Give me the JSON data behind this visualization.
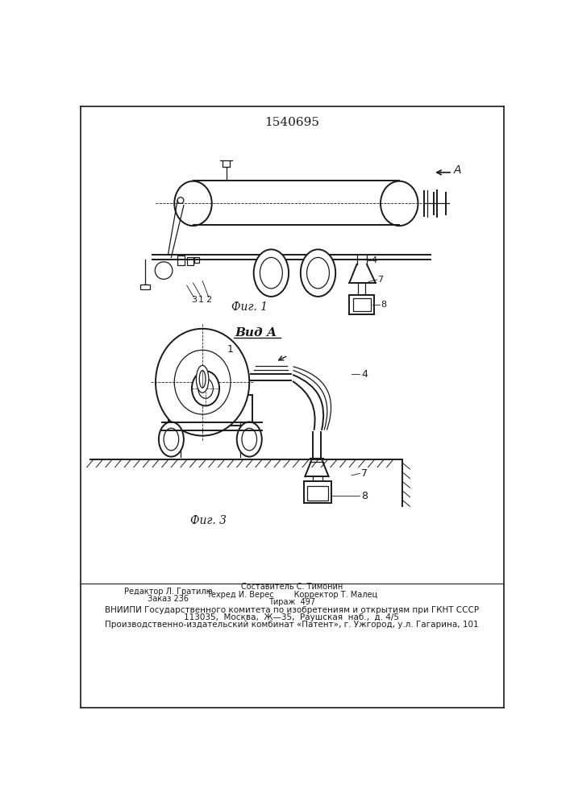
{
  "patent_number": "1540695",
  "fig1_label": "Фиг. 1",
  "fig3_label": "Фиг. 3",
  "vid_a_label": "Вид А",
  "editor_line": "Редактор Л. Гратилю",
  "order_line": "Заказ 236",
  "composer_line": "Составитель С. Тимонин",
  "techred_line": "Техред И. Верес",
  "corrector_line": "Корректор Т. Малец",
  "tirazh_line": "Тираж  497",
  "vniiipi_line": "ВНИИПИ Государственного комитета по изобретениям и открытиям при ГКНТ СССР",
  "address_line": "113035,  Москва,  Ж—35,  Раушская  наб.,  д. 4/5",
  "publisher_line": "Производственно-издательский комбинат «Патент», г. Ужгород, у.л. Гагарина, 101",
  "bg_color": "#ffffff",
  "line_color": "#1a1a1a"
}
